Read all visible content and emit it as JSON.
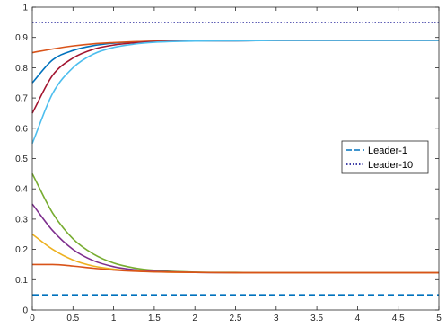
{
  "chart_data": {
    "type": "line",
    "title": "",
    "xlabel": "",
    "ylabel": "",
    "xlim": [
      0,
      5
    ],
    "ylim": [
      0,
      1
    ],
    "grid": false,
    "legend_placement": "right",
    "x_ticks": [
      "0",
      "0.5",
      "1",
      "1.5",
      "2",
      "2.5",
      "3",
      "3.5",
      "4",
      "4.5",
      "5"
    ],
    "y_ticks": [
      "0",
      "0.1",
      "0.2",
      "0.3",
      "0.4",
      "0.5",
      "0.6",
      "0.7",
      "0.8",
      "0.9",
      "1"
    ],
    "leaders": [
      {
        "name": "Leader-1",
        "y": 0.05,
        "style": "dashed",
        "color": "#0072BD"
      },
      {
        "name": "Leader-10",
        "y": 0.95,
        "style": "dotted",
        "color": "#00008B"
      }
    ],
    "series": [
      {
        "x": [
          0,
          0.25,
          0.5,
          0.75,
          1,
          1.25,
          1.5,
          2,
          2.5,
          3,
          4,
          5
        ],
        "y": [
          0.75,
          0.826,
          0.857,
          0.873,
          0.881,
          0.885,
          0.887,
          0.889,
          0.889,
          0.89,
          0.89,
          0.89
        ],
        "color": "#0072BD"
      },
      {
        "x": [
          0,
          0.25,
          0.5,
          0.75,
          1,
          1.25,
          1.5,
          2,
          2.5,
          3,
          4,
          5
        ],
        "y": [
          0.85,
          0.862,
          0.872,
          0.879,
          0.883,
          0.886,
          0.888,
          0.889,
          0.89,
          0.89,
          0.89,
          0.89
        ],
        "color": "#D95319"
      },
      {
        "x": [
          0,
          0.25,
          0.5,
          0.75,
          1,
          1.25,
          1.5,
          2,
          2.5,
          3,
          4,
          5
        ],
        "y": [
          0.65,
          0.775,
          0.832,
          0.861,
          0.875,
          0.882,
          0.886,
          0.889,
          0.889,
          0.89,
          0.89,
          0.89
        ],
        "color": "#A2142F"
      },
      {
        "x": [
          0,
          0.25,
          0.5,
          0.75,
          1,
          1.25,
          1.5,
          2,
          2.5,
          3,
          4,
          5
        ],
        "y": [
          0.55,
          0.715,
          0.8,
          0.845,
          0.867,
          0.878,
          0.884,
          0.888,
          0.889,
          0.89,
          0.89,
          0.89
        ],
        "color": "#4DBEEE"
      },
      {
        "x": [
          0,
          0.25,
          0.5,
          0.75,
          1,
          1.25,
          1.5,
          2,
          2.5,
          3,
          4,
          5
        ],
        "y": [
          0.45,
          0.32,
          0.235,
          0.185,
          0.155,
          0.139,
          0.131,
          0.125,
          0.124,
          0.123,
          0.123,
          0.123
        ],
        "color": "#77AC30"
      },
      {
        "x": [
          0,
          0.25,
          0.5,
          0.75,
          1,
          1.25,
          1.5,
          2,
          2.5,
          3,
          4,
          5
        ],
        "y": [
          0.35,
          0.262,
          0.2,
          0.163,
          0.143,
          0.133,
          0.128,
          0.124,
          0.123,
          0.123,
          0.123,
          0.123
        ],
        "color": "#7E2F8E"
      },
      {
        "x": [
          0,
          0.25,
          0.5,
          0.75,
          1,
          1.25,
          1.5,
          2,
          2.5,
          3,
          4,
          5
        ],
        "y": [
          0.25,
          0.2,
          0.165,
          0.145,
          0.135,
          0.129,
          0.126,
          0.124,
          0.123,
          0.123,
          0.123,
          0.123
        ],
        "color": "#EDB120"
      },
      {
        "x": [
          0,
          0.25,
          0.5,
          0.75,
          1,
          1.25,
          1.5,
          2,
          2.5,
          3,
          4,
          5
        ],
        "y": [
          0.15,
          0.15,
          0.145,
          0.138,
          0.132,
          0.128,
          0.126,
          0.124,
          0.123,
          0.123,
          0.123,
          0.123
        ],
        "color": "#D95319"
      }
    ]
  }
}
